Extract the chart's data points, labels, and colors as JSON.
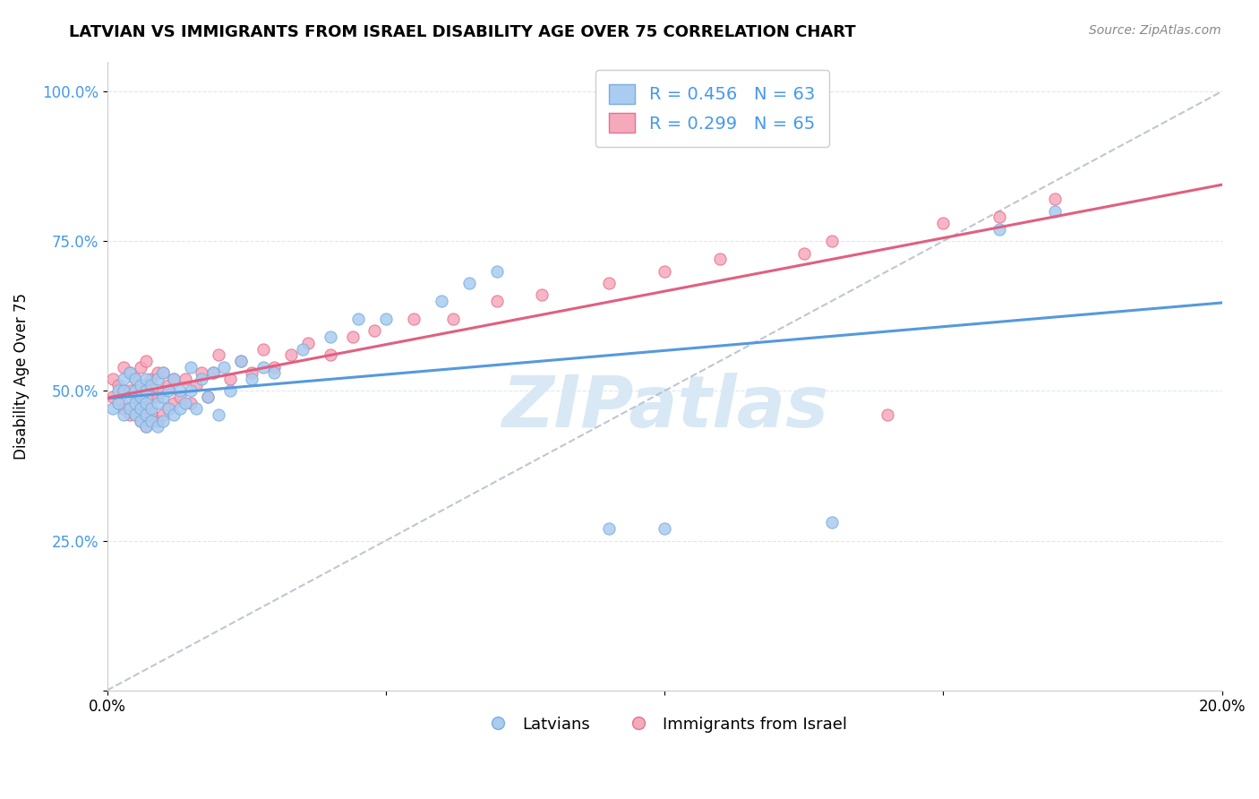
{
  "title": "LATVIAN VS IMMIGRANTS FROM ISRAEL DISABILITY AGE OVER 75 CORRELATION CHART",
  "source": "Source: ZipAtlas.com",
  "ylabel": "Disability Age Over 75",
  "xlabel_label_latvians": "Latvians",
  "xlabel_label_immigrants": "Immigrants from Israel",
  "xmin": 0.0,
  "xmax": 0.2,
  "ymin": 0.0,
  "ymax": 1.05,
  "r_latvian": 0.456,
  "n_latvian": 63,
  "r_immigrant": 0.299,
  "n_immigrant": 65,
  "color_latvian": "#aaccf0",
  "color_latvian_edge": "#7aaede",
  "color_latvian_line": "#5599dd",
  "color_immigrant": "#f5aabc",
  "color_immigrant_edge": "#e87090",
  "color_immigrant_line": "#e06080",
  "color_diag": "#b0b8c8",
  "legend_text_color": "#4499ee",
  "watermark_color": "#d8e8f5",
  "latvian_x": [
    0.001,
    0.002,
    0.002,
    0.003,
    0.003,
    0.003,
    0.004,
    0.004,
    0.004,
    0.005,
    0.005,
    0.005,
    0.005,
    0.006,
    0.006,
    0.006,
    0.006,
    0.007,
    0.007,
    0.007,
    0.007,
    0.007,
    0.008,
    0.008,
    0.008,
    0.009,
    0.009,
    0.009,
    0.01,
    0.01,
    0.01,
    0.011,
    0.011,
    0.012,
    0.012,
    0.013,
    0.013,
    0.014,
    0.015,
    0.015,
    0.016,
    0.017,
    0.018,
    0.019,
    0.02,
    0.021,
    0.022,
    0.024,
    0.026,
    0.028,
    0.03,
    0.035,
    0.04,
    0.045,
    0.05,
    0.06,
    0.065,
    0.07,
    0.09,
    0.1,
    0.13,
    0.16,
    0.17
  ],
  "latvian_y": [
    0.47,
    0.48,
    0.5,
    0.46,
    0.5,
    0.52,
    0.47,
    0.49,
    0.53,
    0.46,
    0.48,
    0.5,
    0.52,
    0.45,
    0.47,
    0.49,
    0.51,
    0.44,
    0.46,
    0.48,
    0.5,
    0.52,
    0.45,
    0.47,
    0.51,
    0.44,
    0.48,
    0.52,
    0.45,
    0.49,
    0.53,
    0.47,
    0.5,
    0.46,
    0.52,
    0.47,
    0.5,
    0.48,
    0.5,
    0.54,
    0.47,
    0.52,
    0.49,
    0.53,
    0.46,
    0.54,
    0.5,
    0.55,
    0.52,
    0.54,
    0.53,
    0.57,
    0.59,
    0.62,
    0.62,
    0.65,
    0.68,
    0.7,
    0.27,
    0.27,
    0.28,
    0.77,
    0.8
  ],
  "immigrant_x": [
    0.001,
    0.001,
    0.002,
    0.002,
    0.003,
    0.003,
    0.003,
    0.004,
    0.004,
    0.004,
    0.005,
    0.005,
    0.005,
    0.006,
    0.006,
    0.006,
    0.006,
    0.007,
    0.007,
    0.007,
    0.007,
    0.008,
    0.008,
    0.008,
    0.009,
    0.009,
    0.009,
    0.01,
    0.01,
    0.01,
    0.011,
    0.011,
    0.012,
    0.012,
    0.013,
    0.014,
    0.015,
    0.016,
    0.017,
    0.018,
    0.019,
    0.02,
    0.022,
    0.024,
    0.026,
    0.028,
    0.03,
    0.033,
    0.036,
    0.04,
    0.044,
    0.048,
    0.055,
    0.062,
    0.07,
    0.078,
    0.09,
    0.1,
    0.11,
    0.125,
    0.13,
    0.14,
    0.15,
    0.16,
    0.17
  ],
  "immigrant_y": [
    0.49,
    0.52,
    0.48,
    0.51,
    0.47,
    0.5,
    0.54,
    0.46,
    0.5,
    0.53,
    0.46,
    0.49,
    0.52,
    0.45,
    0.48,
    0.51,
    0.54,
    0.44,
    0.47,
    0.51,
    0.55,
    0.46,
    0.49,
    0.52,
    0.45,
    0.49,
    0.53,
    0.46,
    0.5,
    0.53,
    0.47,
    0.51,
    0.48,
    0.52,
    0.49,
    0.52,
    0.48,
    0.51,
    0.53,
    0.49,
    0.53,
    0.56,
    0.52,
    0.55,
    0.53,
    0.57,
    0.54,
    0.56,
    0.58,
    0.56,
    0.59,
    0.6,
    0.62,
    0.62,
    0.65,
    0.66,
    0.68,
    0.7,
    0.72,
    0.73,
    0.75,
    0.46,
    0.78,
    0.79,
    0.82
  ],
  "y_ticks": [
    0.0,
    0.25,
    0.5,
    0.75,
    1.0
  ],
  "y_tick_labels": [
    "",
    "25.0%",
    "50.0%",
    "75.0%",
    "100.0%"
  ],
  "x_ticks": [
    0.0,
    0.05,
    0.1,
    0.15,
    0.2
  ],
  "x_tick_labels": [
    "0.0%",
    "",
    "",
    "",
    "20.0%"
  ]
}
